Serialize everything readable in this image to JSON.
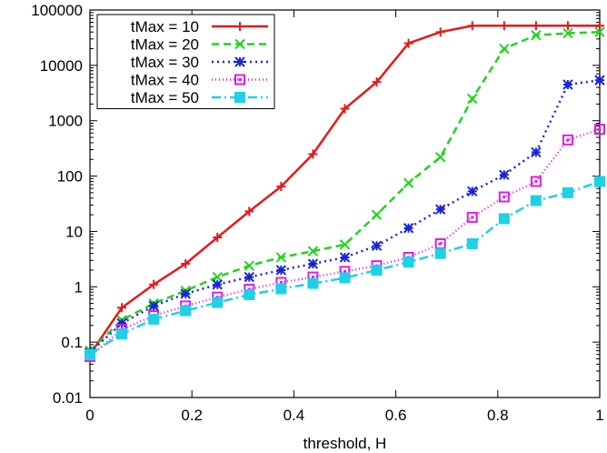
{
  "chart_data": {
    "type": "line",
    "title": "",
    "xlabel": "threshold, H",
    "ylabel": "",
    "xlim": [
      0,
      1
    ],
    "ylim": [
      0.01,
      100000
    ],
    "yscale": "log",
    "grid": false,
    "legend_position": "top-left",
    "x_ticks": [
      "0",
      "0.2",
      "0.4",
      "0.6",
      "0.8",
      "1"
    ],
    "x_tick_values": [
      0,
      0.2,
      0.4,
      0.6,
      0.8,
      1
    ],
    "y_ticks": [
      "0.01",
      "0.1",
      "1",
      "10",
      "100",
      "1000",
      "10000",
      "100000"
    ],
    "y_tick_values": [
      0.01,
      0.1,
      1,
      10,
      100,
      1000,
      10000,
      100000
    ],
    "x": [
      0,
      0.0625,
      0.125,
      0.1875,
      0.25,
      0.3125,
      0.375,
      0.4375,
      0.5,
      0.5625,
      0.625,
      0.6875,
      0.75,
      0.8125,
      0.875,
      0.9375,
      1
    ],
    "series": [
      {
        "name": "tMax = 10",
        "color": "#e41a1c",
        "dash": "",
        "marker": "plus",
        "values": [
          0.06,
          0.42,
          1.1,
          2.6,
          7.8,
          23,
          65,
          250,
          1650,
          5000,
          25000,
          40000,
          52000,
          52000,
          52000,
          52000,
          52000
        ]
      },
      {
        "name": "tMax = 20",
        "color": "#22d31f",
        "dash": "8,5",
        "marker": "cross",
        "values": [
          0.07,
          0.25,
          0.5,
          0.85,
          1.5,
          2.4,
          3.4,
          4.4,
          5.8,
          20,
          75,
          220,
          2500,
          20000,
          35000,
          38000,
          40000
        ]
      },
      {
        "name": "tMax = 30",
        "color": "#1a24d6",
        "dash": "2,4",
        "marker": "star",
        "values": [
          0.065,
          0.22,
          0.45,
          0.75,
          1.1,
          1.5,
          2.0,
          2.6,
          3.4,
          5.5,
          11.5,
          25,
          53,
          105,
          270,
          4500,
          5400
        ]
      },
      {
        "name": "tMax = 40",
        "color": "#dd1fdd",
        "dash": "1,3",
        "marker": "open-square",
        "values": [
          0.055,
          0.17,
          0.3,
          0.45,
          0.65,
          0.9,
          1.2,
          1.5,
          1.9,
          2.4,
          3.4,
          6,
          18,
          42,
          80,
          450,
          700
        ]
      },
      {
        "name": "tMax = 50",
        "color": "#1fd0e6",
        "dash": "10,4,2,4",
        "marker": "filled-square",
        "values": [
          0.06,
          0.14,
          0.26,
          0.37,
          0.52,
          0.72,
          0.92,
          1.15,
          1.45,
          2.0,
          2.8,
          4.0,
          6.0,
          17,
          36,
          50,
          80
        ]
      }
    ]
  }
}
